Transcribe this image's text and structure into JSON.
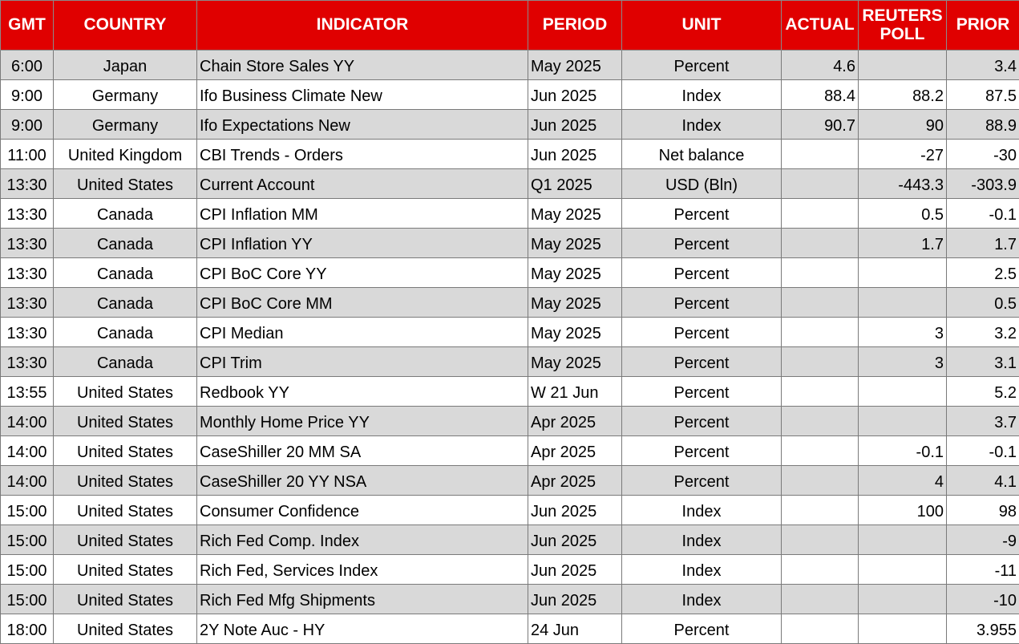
{
  "headers": {
    "gmt": "GMT",
    "country": "COUNTRY",
    "indicator": "INDICATOR",
    "period": "PERIOD",
    "unit": "UNIT",
    "actual": "ACTUAL",
    "poll": "REUTERS POLL",
    "prior": "PRIOR"
  },
  "colors": {
    "header_bg": "#e00000",
    "header_text": "#ffffff",
    "row_shade": "#d9d9d9",
    "row_plain": "#ffffff"
  },
  "rows": [
    {
      "gmt": "6:00",
      "country": "Japan",
      "indicator": "Chain Store Sales YY",
      "period": "May 2025",
      "unit": "Percent",
      "actual": "4.6",
      "poll": "",
      "prior": "3.4"
    },
    {
      "gmt": "9:00",
      "country": "Germany",
      "indicator": "Ifo Business Climate New",
      "period": "Jun 2025",
      "unit": "Index",
      "actual": "88.4",
      "poll": "88.2",
      "prior": "87.5"
    },
    {
      "gmt": "9:00",
      "country": "Germany",
      "indicator": "Ifo Expectations New",
      "period": "Jun 2025",
      "unit": "Index",
      "actual": "90.7",
      "poll": "90",
      "prior": "88.9"
    },
    {
      "gmt": "11:00",
      "country": "United Kingdom",
      "indicator": "CBI Trends - Orders",
      "period": "Jun 2025",
      "unit": "Net balance",
      "actual": "",
      "poll": "-27",
      "prior": "-30"
    },
    {
      "gmt": "13:30",
      "country": "United States",
      "indicator": "Current Account",
      "period": "Q1 2025",
      "unit": "USD (Bln)",
      "actual": "",
      "poll": "-443.3",
      "prior": "-303.9"
    },
    {
      "gmt": "13:30",
      "country": "Canada",
      "indicator": "CPI Inflation MM",
      "period": "May 2025",
      "unit": "Percent",
      "actual": "",
      "poll": "0.5",
      "prior": "-0.1"
    },
    {
      "gmt": "13:30",
      "country": "Canada",
      "indicator": "CPI Inflation YY",
      "period": "May 2025",
      "unit": "Percent",
      "actual": "",
      "poll": "1.7",
      "prior": "1.7"
    },
    {
      "gmt": "13:30",
      "country": "Canada",
      "indicator": "CPI BoC Core YY",
      "period": "May 2025",
      "unit": "Percent",
      "actual": "",
      "poll": "",
      "prior": "2.5"
    },
    {
      "gmt": "13:30",
      "country": "Canada",
      "indicator": "CPI BoC Core MM",
      "period": "May 2025",
      "unit": "Percent",
      "actual": "",
      "poll": "",
      "prior": "0.5"
    },
    {
      "gmt": "13:30",
      "country": "Canada",
      "indicator": "CPI Median",
      "period": "May 2025",
      "unit": "Percent",
      "actual": "",
      "poll": "3",
      "prior": "3.2"
    },
    {
      "gmt": "13:30",
      "country": "Canada",
      "indicator": "CPI Trim",
      "period": "May 2025",
      "unit": "Percent",
      "actual": "",
      "poll": "3",
      "prior": "3.1"
    },
    {
      "gmt": "13:55",
      "country": "United States",
      "indicator": "Redbook YY",
      "period": "W 21 Jun",
      "unit": "Percent",
      "actual": "",
      "poll": "",
      "prior": "5.2"
    },
    {
      "gmt": "14:00",
      "country": "United States",
      "indicator": "Monthly Home Price YY",
      "period": "Apr 2025",
      "unit": "Percent",
      "actual": "",
      "poll": "",
      "prior": "3.7"
    },
    {
      "gmt": "14:00",
      "country": "United States",
      "indicator": "CaseShiller 20 MM SA",
      "period": "Apr 2025",
      "unit": "Percent",
      "actual": "",
      "poll": "-0.1",
      "prior": "-0.1"
    },
    {
      "gmt": "14:00",
      "country": "United States",
      "indicator": "CaseShiller 20 YY NSA",
      "period": "Apr 2025",
      "unit": "Percent",
      "actual": "",
      "poll": "4",
      "prior": "4.1"
    },
    {
      "gmt": "15:00",
      "country": "United States",
      "indicator": "Consumer Confidence",
      "period": "Jun 2025",
      "unit": "Index",
      "actual": "",
      "poll": "100",
      "prior": "98"
    },
    {
      "gmt": "15:00",
      "country": "United States",
      "indicator": "Rich Fed Comp. Index",
      "period": "Jun 2025",
      "unit": "Index",
      "actual": "",
      "poll": "",
      "prior": "-9"
    },
    {
      "gmt": "15:00",
      "country": "United States",
      "indicator": "Rich Fed, Services Index",
      "period": "Jun 2025",
      "unit": "Index",
      "actual": "",
      "poll": "",
      "prior": "-11"
    },
    {
      "gmt": "15:00",
      "country": "United States",
      "indicator": "Rich Fed Mfg Shipments",
      "period": "Jun 2025",
      "unit": "Index",
      "actual": "",
      "poll": "",
      "prior": "-10"
    },
    {
      "gmt": "18:00",
      "country": "United States",
      "indicator": "2Y Note Auc - HY",
      "period": "24 Jun",
      "unit": "Percent",
      "actual": "",
      "poll": "",
      "prior": "3.955"
    }
  ]
}
